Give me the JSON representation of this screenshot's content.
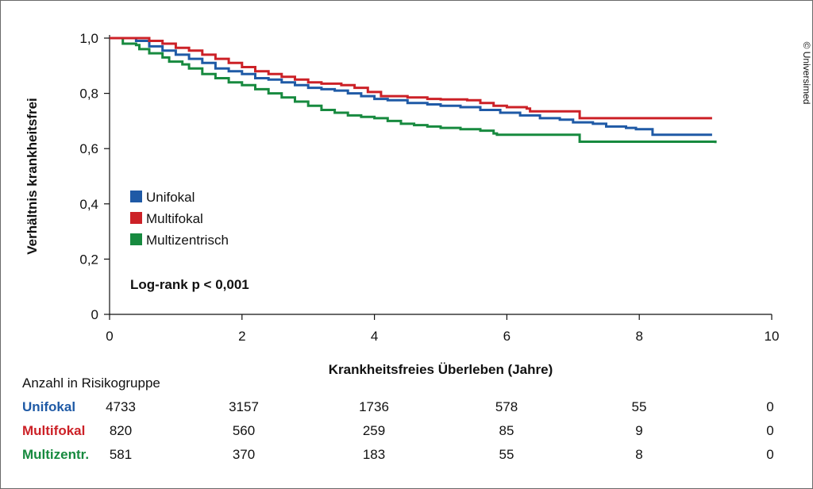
{
  "chart_data": {
    "type": "line",
    "step": true,
    "xlabel": "Krankheitsfreies Überleben (Jahre)",
    "ylabel": "Verhältnis krankheitsfrei",
    "xlim": [
      0,
      10
    ],
    "ylim": [
      0,
      1.0
    ],
    "x_ticks": [
      "0",
      "2",
      "4",
      "6",
      "8",
      "10"
    ],
    "y_ticks": [
      "0",
      "0,2",
      "0,4",
      "0,6",
      "0,8",
      "1,0"
    ],
    "grid": false,
    "legend_placement": "center-left",
    "annotation": "Log-rank p < 0,001",
    "credit": "© Universimed",
    "series": [
      {
        "name": "Unifokal",
        "color": "#1f5aa6",
        "points": [
          [
            0,
            1.0
          ],
          [
            0.4,
            0.99
          ],
          [
            0.6,
            0.97
          ],
          [
            0.8,
            0.955
          ],
          [
            1.0,
            0.94
          ],
          [
            1.2,
            0.925
          ],
          [
            1.4,
            0.91
          ],
          [
            1.6,
            0.89
          ],
          [
            1.8,
            0.88
          ],
          [
            2.0,
            0.87
          ],
          [
            2.2,
            0.855
          ],
          [
            2.4,
            0.85
          ],
          [
            2.6,
            0.84
          ],
          [
            2.8,
            0.83
          ],
          [
            3.0,
            0.82
          ],
          [
            3.2,
            0.815
          ],
          [
            3.4,
            0.81
          ],
          [
            3.6,
            0.8
          ],
          [
            3.8,
            0.79
          ],
          [
            4.0,
            0.78
          ],
          [
            4.2,
            0.775
          ],
          [
            4.5,
            0.765
          ],
          [
            4.8,
            0.76
          ],
          [
            5.0,
            0.755
          ],
          [
            5.3,
            0.75
          ],
          [
            5.6,
            0.74
          ],
          [
            5.9,
            0.73
          ],
          [
            6.2,
            0.72
          ],
          [
            6.5,
            0.71
          ],
          [
            6.8,
            0.705
          ],
          [
            7.0,
            0.695
          ],
          [
            7.3,
            0.69
          ],
          [
            7.5,
            0.68
          ],
          [
            7.8,
            0.675
          ],
          [
            7.95,
            0.67
          ],
          [
            8.2,
            0.67
          ],
          [
            8.2,
            0.65
          ],
          [
            9.1,
            0.65
          ]
        ]
      },
      {
        "name": "Multifokal",
        "color": "#cc2127",
        "points": [
          [
            0,
            1.0
          ],
          [
            0.4,
            1.0
          ],
          [
            0.6,
            0.99
          ],
          [
            0.8,
            0.98
          ],
          [
            1.0,
            0.965
          ],
          [
            1.2,
            0.955
          ],
          [
            1.4,
            0.94
          ],
          [
            1.6,
            0.925
          ],
          [
            1.8,
            0.91
          ],
          [
            2.0,
            0.895
          ],
          [
            2.2,
            0.88
          ],
          [
            2.4,
            0.87
          ],
          [
            2.6,
            0.86
          ],
          [
            2.8,
            0.85
          ],
          [
            3.0,
            0.84
          ],
          [
            3.2,
            0.835
          ],
          [
            3.5,
            0.83
          ],
          [
            3.7,
            0.82
          ],
          [
            3.9,
            0.805
          ],
          [
            4.1,
            0.79
          ],
          [
            4.5,
            0.785
          ],
          [
            4.8,
            0.78
          ],
          [
            5.0,
            0.778
          ],
          [
            5.4,
            0.775
          ],
          [
            5.6,
            0.765
          ],
          [
            5.8,
            0.755
          ],
          [
            6.0,
            0.75
          ],
          [
            6.3,
            0.745
          ],
          [
            6.35,
            0.735
          ],
          [
            7.1,
            0.735
          ],
          [
            7.1,
            0.71
          ],
          [
            9.1,
            0.71
          ]
        ]
      },
      {
        "name": "Multizentrisch",
        "color": "#178a3f",
        "points": [
          [
            0,
            1.0
          ],
          [
            0.2,
            1.0
          ],
          [
            0.2,
            0.98
          ],
          [
            0.4,
            0.975
          ],
          [
            0.45,
            0.96
          ],
          [
            0.6,
            0.945
          ],
          [
            0.8,
            0.93
          ],
          [
            0.9,
            0.915
          ],
          [
            1.1,
            0.905
          ],
          [
            1.2,
            0.89
          ],
          [
            1.4,
            0.87
          ],
          [
            1.6,
            0.855
          ],
          [
            1.8,
            0.84
          ],
          [
            2.0,
            0.83
          ],
          [
            2.2,
            0.815
          ],
          [
            2.4,
            0.8
          ],
          [
            2.6,
            0.785
          ],
          [
            2.8,
            0.77
          ],
          [
            3.0,
            0.755
          ],
          [
            3.2,
            0.74
          ],
          [
            3.4,
            0.73
          ],
          [
            3.6,
            0.72
          ],
          [
            3.8,
            0.715
          ],
          [
            4.0,
            0.71
          ],
          [
            4.2,
            0.7
          ],
          [
            4.4,
            0.69
          ],
          [
            4.6,
            0.685
          ],
          [
            4.8,
            0.68
          ],
          [
            5.0,
            0.675
          ],
          [
            5.3,
            0.67
          ],
          [
            5.6,
            0.665
          ],
          [
            5.8,
            0.655
          ],
          [
            5.85,
            0.65
          ],
          [
            7.1,
            0.65
          ],
          [
            7.1,
            0.625
          ],
          [
            9.15,
            0.62
          ]
        ]
      }
    ]
  },
  "risk_table": {
    "title": "Anzahl in Risikogruppe",
    "rows": [
      {
        "label": "Unifokal",
        "color": "#1f5aa6",
        "values": [
          "4733",
          "3157",
          "1736",
          "578",
          "55",
          "0"
        ]
      },
      {
        "label": "Multifokal",
        "color": "#cc2127",
        "values": [
          "820",
          "560",
          "259",
          "85",
          "9",
          "0"
        ]
      },
      {
        "label": "Multizentr.",
        "color": "#178a3f",
        "values": [
          "581",
          "370",
          "183",
          "55",
          "8",
          "0"
        ]
      }
    ]
  }
}
